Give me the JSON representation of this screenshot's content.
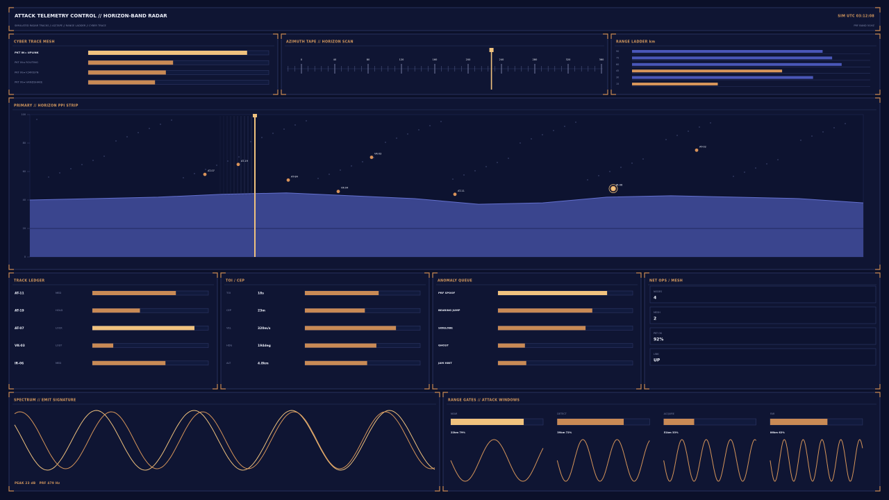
{
  "header": {
    "title": "ATTACK TELEMETRY CONTROL  //  HORIZON-BAND RADAR",
    "subtitle": "SIMULATED RADAR TRACKS // AZ/TAPE // RANGE LADDER // CYBER TRACE",
    "clock": "SIM UTC 03:12:08",
    "band": "PRF BAND 5GHZ"
  },
  "cyber_trace": {
    "title": "CYBER TRACE MESH",
    "xlim": [
      0,
      100
    ],
    "color": "#c98a55",
    "rows": [
      {
        "label": "PKT IN ▸ UPLINK",
        "value": 88,
        "color": "#f0c27e"
      },
      {
        "label": "PKT IN ▸ ROUTING",
        "value": 47
      },
      {
        "label": "PKT IN ▸ ICMP/SYN",
        "value": 43
      },
      {
        "label": "PKT IN ▸ HANDSHAKE",
        "value": 37
      }
    ]
  },
  "azimuth": {
    "title": "AZIMUTH TAPE  //  HORIZON SCAN",
    "xlim": [
      0,
      360
    ],
    "ticks": [
      0,
      40,
      80,
      120,
      160,
      200,
      240,
      280,
      320,
      360
    ],
    "heading": 228,
    "color": "#f0c27e"
  },
  "range_ladder": {
    "title": "RANGE LADDER km",
    "xlim": [
      0,
      100
    ],
    "rows": [
      {
        "label": "90",
        "value": 80,
        "color": "#4a57b8"
      },
      {
        "label": "75",
        "value": 84,
        "color": "#4a57b8"
      },
      {
        "label": "60",
        "value": 88,
        "color": "#4a57b8"
      },
      {
        "label": "45",
        "value": 63,
        "color": "#d6955a"
      },
      {
        "label": "30",
        "value": 76,
        "color": "#4a57b8"
      },
      {
        "label": "15",
        "value": 36,
        "color": "#d6955a"
      }
    ]
  },
  "primary": {
    "title": "PRIMARY  //  HORIZON PPI STRIP",
    "xlim": [
      0,
      100
    ],
    "ylim": [
      0,
      100
    ],
    "yticks": [
      0,
      20,
      40,
      60,
      80,
      100
    ],
    "cursor": 27,
    "floor": 20,
    "terrain_color": "#3d4894",
    "terrain": [
      40,
      41,
      42,
      44,
      45,
      43,
      41,
      37,
      38,
      42,
      43,
      42,
      41,
      38
    ],
    "tracks": [
      {
        "label": "AT-07",
        "x": 21,
        "y": 58
      },
      {
        "label": "AT-19",
        "x": 25,
        "y": 65
      },
      {
        "label": "AT-84",
        "x": 31,
        "y": 54
      },
      {
        "label": "VK-04",
        "x": 37,
        "y": 46
      },
      {
        "label": "VK-03",
        "x": 41,
        "y": 70
      },
      {
        "label": "AT-11",
        "x": 51,
        "y": 44
      },
      {
        "label": "IR-06",
        "x": 70,
        "y": 48,
        "locked": true
      },
      {
        "label": "AT-02",
        "x": 80,
        "y": 75
      }
    ]
  },
  "track_ledger": {
    "title": "TRACK LEDGER",
    "xlim": [
      0,
      100
    ],
    "color": "#c98a55",
    "rows": [
      {
        "id": "AT-11",
        "status": "MED",
        "value": 72
      },
      {
        "id": "AT-19",
        "status": "HOLD",
        "value": 41
      },
      {
        "id": "AT-07",
        "status": "LOCK",
        "value": 88,
        "color": "#f0c27e"
      },
      {
        "id": "VK-03",
        "status": "LOST",
        "value": 18
      },
      {
        "id": "IR-06",
        "status": "MED",
        "value": 63
      }
    ]
  },
  "toi_cep": {
    "title": "TOI / CEP",
    "xlim": [
      0,
      100
    ],
    "color": "#c98a55",
    "rows": [
      {
        "label": "TOI",
        "reading": "18s",
        "value": 64
      },
      {
        "label": "CEP",
        "reading": "23m",
        "value": 52
      },
      {
        "label": "VEL",
        "reading": "320m/s",
        "value": 79
      },
      {
        "label": "HDG",
        "reading": "194deg",
        "value": 62
      },
      {
        "label": "ALT",
        "reading": "4.8km",
        "value": 54
      }
    ]
  },
  "anomaly_queue": {
    "title": "ANOMALY QUEUE",
    "xlim": [
      0,
      100
    ],
    "color": "#c98a55",
    "rows": [
      {
        "label": "PRF SPOOF",
        "value": 81,
        "color": "#f0c27e"
      },
      {
        "label": "BEARING JUMP",
        "value": 70
      },
      {
        "label": "SIDELOBE",
        "value": 65
      },
      {
        "label": "GHOST",
        "value": 20
      },
      {
        "label": "JAM HINT",
        "value": 21
      }
    ]
  },
  "net_ops": {
    "title": "NET OPS / MESH",
    "cells": [
      {
        "label": "NODES",
        "value": "4"
      },
      {
        "label": "MESH",
        "value": "2"
      },
      {
        "label": "PKT OK",
        "value": "92%"
      },
      {
        "label": "LINK",
        "value": "UP"
      }
    ]
  },
  "spectrum": {
    "title": "SPECTRUM  //  EMIT SIGNATURE",
    "footer": "PEAK 23 dB   PRF 479 Hz"
  },
  "range_gates": {
    "title": "RANGE GATES  //  ATTACK WINDOWS",
    "xlim": [
      0,
      100
    ],
    "color": "#c98a55",
    "gates": [
      {
        "label": "NEAR",
        "value": 79,
        "value_label": "22km 79%",
        "color": "#f0c27e"
      },
      {
        "label": "DETECT",
        "value": 72,
        "value_label": "39km 72%"
      },
      {
        "label": "ACQUIRE",
        "value": 33,
        "value_label": "51km 33%"
      },
      {
        "label": "FAR",
        "value": 62,
        "value_label": "86km 62%"
      }
    ]
  }
}
